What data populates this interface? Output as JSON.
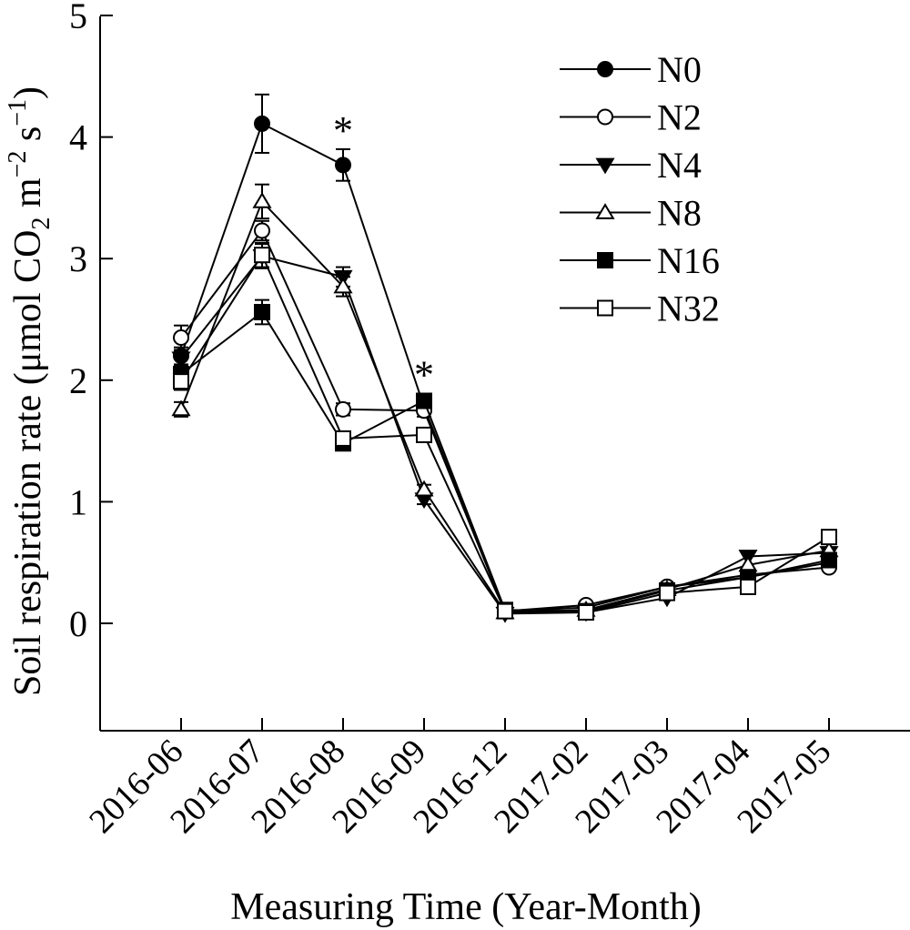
{
  "chart_data": {
    "type": "line",
    "title": "",
    "xlabel": "Measuring Time (Year-Month)",
    "ylabel_parts": {
      "prefix": "Soil respiration rate (μmol CO",
      "co2_sub": "2",
      "unit_mid": " m",
      "m_sup": "−2",
      "unit_s": " s",
      "s_sup": "−1",
      "suffix": ")"
    },
    "categories": [
      "2016-06",
      "2016-07",
      "2016-08",
      "2016-09",
      "2016-12",
      "2017-02",
      "2017-03",
      "2017-04",
      "2017-05"
    ],
    "ylim": [
      -0.9,
      5
    ],
    "yticks": [
      0,
      1,
      2,
      3,
      4,
      5
    ],
    "grid": false,
    "legend_position": "top-right",
    "significance_marks": [
      {
        "category": "2016-08",
        "label": "*",
        "y": 4.08
      },
      {
        "category": "2016-09",
        "label": "*",
        "y": 2.07
      }
    ],
    "series": [
      {
        "name": "N0",
        "marker": "circle",
        "filled": true,
        "values": [
          2.2,
          4.11,
          3.77,
          1.78,
          0.1,
          0.13,
          0.3,
          0.38,
          0.5
        ],
        "errors": [
          0.07,
          0.24,
          0.13,
          0.05,
          0.02,
          0.02,
          0.02,
          0.03,
          0.03
        ]
      },
      {
        "name": "N2",
        "marker": "circle",
        "filled": false,
        "values": [
          2.35,
          3.23,
          1.76,
          1.75,
          0.1,
          0.15,
          0.3,
          0.4,
          0.46
        ],
        "errors": [
          0.1,
          0.08,
          0.05,
          0.05,
          0.02,
          0.02,
          0.02,
          0.03,
          0.03
        ]
      },
      {
        "name": "N4",
        "marker": "triangle-down",
        "filled": true,
        "values": [
          2.18,
          3.02,
          2.85,
          1.02,
          0.08,
          0.09,
          0.21,
          0.55,
          0.58
        ],
        "errors": [
          0.06,
          0.1,
          0.08,
          0.04,
          0.02,
          0.02,
          0.02,
          0.03,
          0.03
        ]
      },
      {
        "name": "N8",
        "marker": "triangle-up",
        "filled": false,
        "values": [
          1.76,
          3.47,
          2.77,
          1.1,
          0.09,
          0.11,
          0.28,
          0.48,
          0.6
        ],
        "errors": [
          0.06,
          0.14,
          0.08,
          0.04,
          0.02,
          0.02,
          0.02,
          0.03,
          0.03
        ]
      },
      {
        "name": "N16",
        "marker": "square",
        "filled": true,
        "values": [
          2.05,
          2.56,
          1.48,
          1.83,
          0.11,
          0.1,
          0.27,
          0.38,
          0.52
        ],
        "errors": [
          0.07,
          0.1,
          0.04,
          0.06,
          0.02,
          0.02,
          0.02,
          0.03,
          0.03
        ]
      },
      {
        "name": "N32",
        "marker": "square",
        "filled": false,
        "values": [
          1.99,
          3.03,
          1.52,
          1.55,
          0.1,
          0.09,
          0.25,
          0.3,
          0.71
        ],
        "errors": [
          0.07,
          0.1,
          0.04,
          0.05,
          0.02,
          0.02,
          0.02,
          0.03,
          0.03
        ]
      }
    ]
  }
}
